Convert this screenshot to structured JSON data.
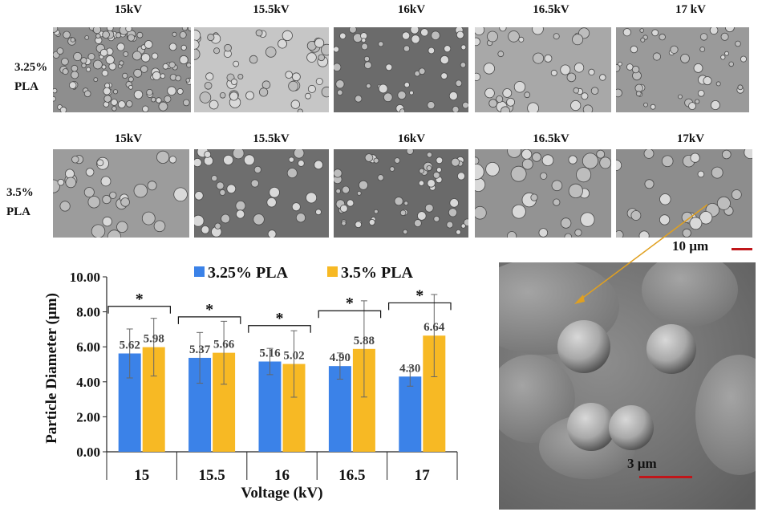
{
  "figure": {
    "voltage_labels_top": [
      "15kV",
      "15.5kV",
      "16kV",
      "16.5kV",
      "17 kV"
    ],
    "voltage_labels_bottom": [
      "15kV",
      "15.5kV",
      "16kV",
      "16.5kV",
      "17kV"
    ],
    "row1_label_line1": "3.25%",
    "row1_label_line2": "PLA",
    "row2_label_line1": "3.5%",
    "row2_label_line2": "PLA",
    "scale_large": "10 µm",
    "scale_small": "3 µm",
    "colors": {
      "scale_bar": "#c0161a",
      "arrow": "#e0a020"
    }
  },
  "chart_data": {
    "type": "bar",
    "categories": [
      "15",
      "15.5",
      "16",
      "16.5",
      "17"
    ],
    "series": [
      {
        "name": "3.25% PLA",
        "color": "#3b82e8",
        "values": [
          5.62,
          5.37,
          5.16,
          4.9,
          4.3
        ],
        "errors": [
          1.4,
          1.45,
          0.75,
          0.75,
          0.55
        ]
      },
      {
        "name": "3.5% PLA",
        "color": "#f7b924",
        "values": [
          5.98,
          5.66,
          5.02,
          5.88,
          6.64
        ],
        "errors": [
          1.65,
          1.8,
          1.9,
          2.75,
          2.35
        ]
      }
    ],
    "data_labels": [
      [
        "5.62",
        "5.37",
        "5.16",
        "4.90",
        "4.30"
      ],
      [
        "5.98",
        "5.66",
        "5.02",
        "5.88",
        "6.64"
      ]
    ],
    "significance_marker": "*",
    "ylim": [
      0,
      10
    ],
    "yticks": [
      "0.00",
      "2.00",
      "4.00",
      "6.00",
      "8.00",
      "10.00"
    ],
    "xlabel": "Voltage (kV)",
    "ylabel": "Particle Diameter (µm)",
    "legend_position": "top"
  }
}
